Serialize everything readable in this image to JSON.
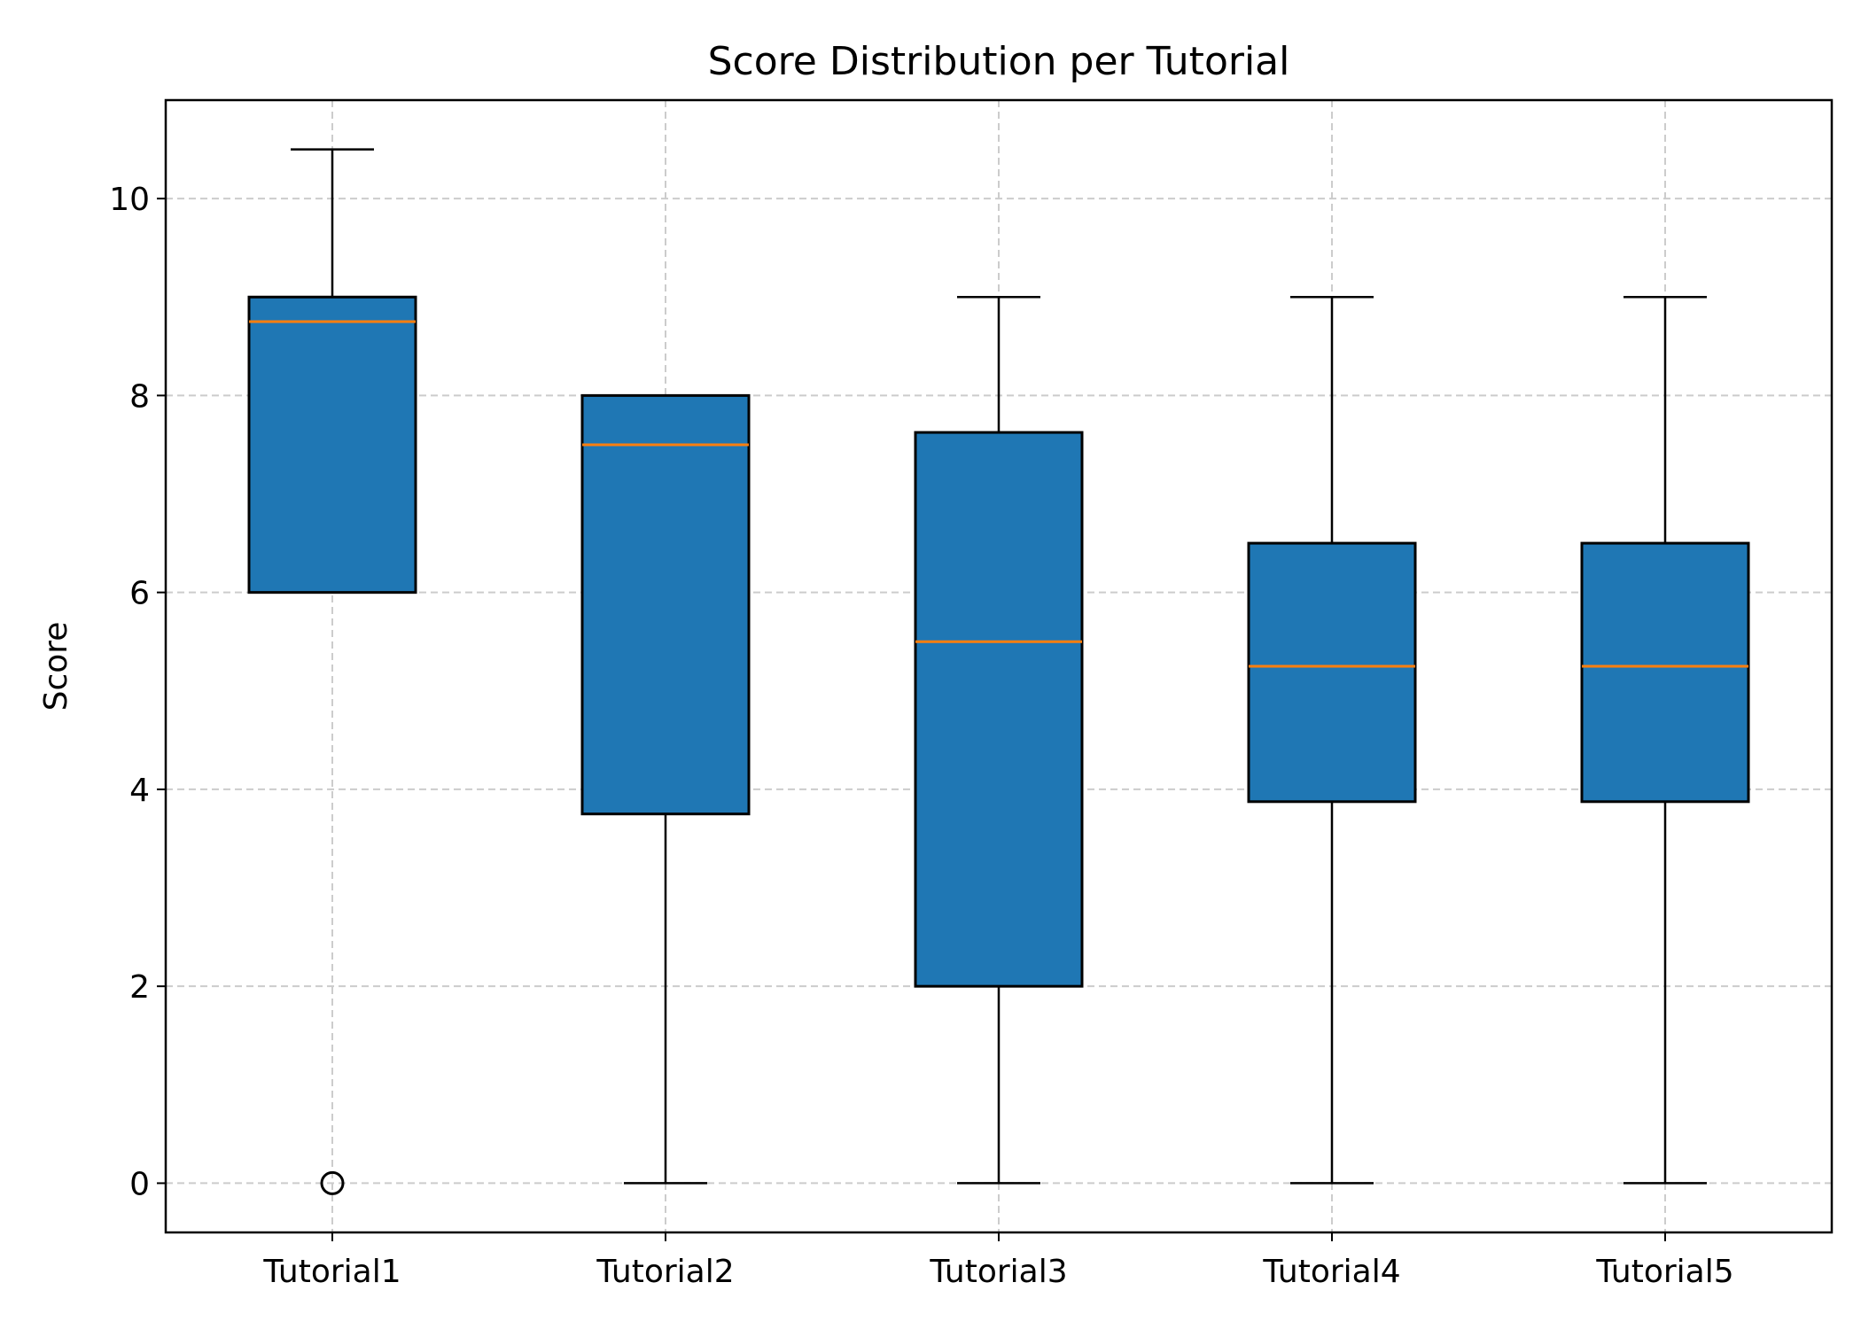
{
  "chart_data": {
    "type": "box",
    "title": "Score Distribution per Tutorial",
    "xlabel": "",
    "ylabel": "Score",
    "ylim": [
      -0.5,
      11.0
    ],
    "yticks": [
      0,
      2,
      4,
      6,
      8,
      10
    ],
    "grid": true,
    "categories": [
      "Tutorial1",
      "Tutorial2",
      "Tutorial3",
      "Tutorial4",
      "Tutorial5"
    ],
    "boxes": [
      {
        "whisker_low": 6.0,
        "q1": 6.0,
        "median": 8.75,
        "q3": 9.0,
        "whisker_high": 10.5,
        "outliers": [
          0
        ]
      },
      {
        "whisker_low": 0.0,
        "q1": 3.75,
        "median": 7.5,
        "q3": 8.0,
        "whisker_high": 8.0,
        "outliers": []
      },
      {
        "whisker_low": 0.0,
        "q1": 2.0,
        "median": 5.5,
        "q3": 7.625,
        "whisker_high": 9.0,
        "outliers": []
      },
      {
        "whisker_low": 0.0,
        "q1": 3.875,
        "median": 5.25,
        "q3": 6.5,
        "whisker_high": 9.0,
        "outliers": []
      },
      {
        "whisker_low": 0.0,
        "q1": 3.875,
        "median": 5.25,
        "q3": 6.5,
        "whisker_high": 9.0,
        "outliers": []
      }
    ],
    "colors": {
      "box_fill": "#1f77b4",
      "median": "#ff7f0e",
      "edge": "#000000",
      "grid": "#cccccc"
    }
  }
}
